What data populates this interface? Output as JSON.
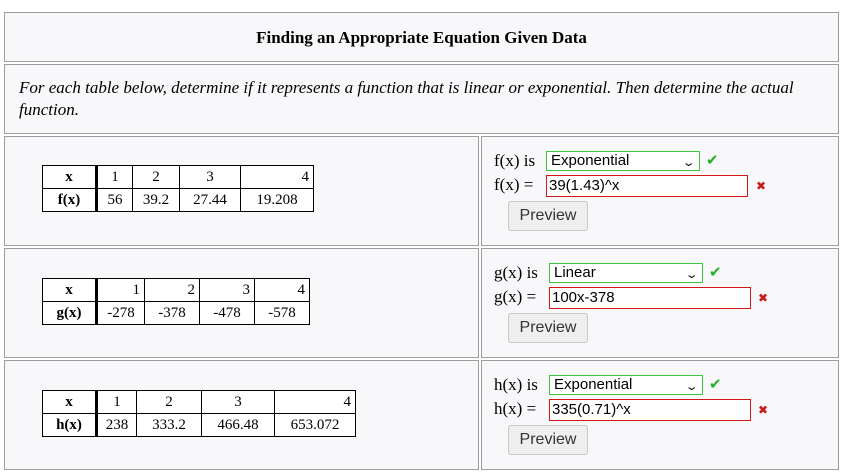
{
  "header": {
    "title": "Finding an Appropriate Equation Given Data"
  },
  "instructions": "For each table below, determine if it represents a function that is linear or exponential. Then determine the actual function.",
  "problems": [
    {
      "fname": "f",
      "table": {
        "x_label": "x",
        "y_label": "f(x)",
        "x": [
          "1",
          "2",
          "3",
          "4"
        ],
        "y": [
          "56",
          "39.2",
          "27.44",
          "19.208"
        ]
      },
      "type_prefix": "f(x) is",
      "type_value": "Exponential",
      "eq_prefix": "f(x) =",
      "eq_value": "39(1.43)^x",
      "preview_label": "Preview"
    },
    {
      "fname": "g",
      "table": {
        "x_label": "x",
        "y_label": "g(x)",
        "x": [
          "1",
          "2",
          "3",
          "4"
        ],
        "y": [
          "-278",
          "-378",
          "-478",
          "-578"
        ]
      },
      "type_prefix": "g(x) is",
      "type_value": "Linear",
      "eq_prefix": "g(x) =",
      "eq_value": "100x-378",
      "preview_label": "Preview"
    },
    {
      "fname": "h",
      "table": {
        "x_label": "x",
        "y_label": "h(x)",
        "x": [
          "1",
          "2",
          "3",
          "4"
        ],
        "y": [
          "238",
          "333.2",
          "466.48",
          "653.072"
        ]
      },
      "type_prefix": "h(x) is",
      "type_value": "Exponential",
      "eq_prefix": "h(x) =",
      "eq_value": "335(0.71)^x",
      "preview_label": "Preview"
    }
  ],
  "icons": {
    "correct": "check-icon",
    "incorrect": "cross-icon",
    "dropdown": "chevron-down-icon"
  },
  "colors": {
    "correct": "#23b023",
    "incorrect": "#cc1a1a"
  }
}
